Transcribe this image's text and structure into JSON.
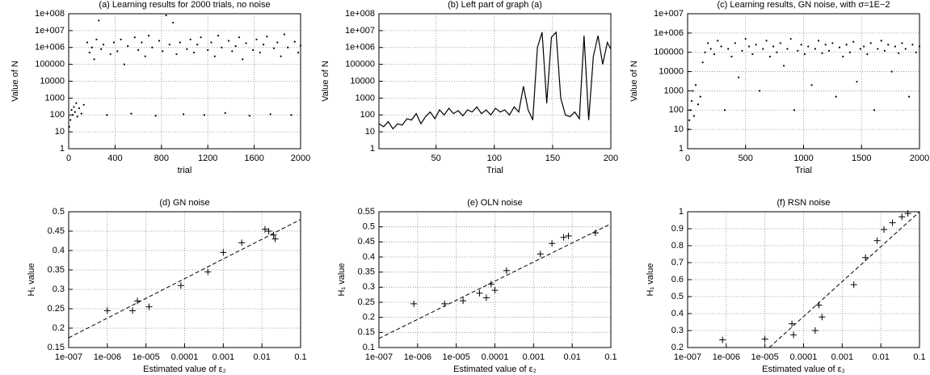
{
  "chart_data": [
    {
      "type": "scatter",
      "title": "(a) Learning results for 2000 trials, no noise",
      "x_label": "trial",
      "y_label": "Value of N",
      "marker": "dot",
      "color": "#000000",
      "grid": true,
      "xlog": false,
      "ylog": true,
      "xlim": [
        0,
        2000
      ],
      "xticks": [
        0,
        400,
        800,
        1200,
        1600,
        2000
      ],
      "ylim": [
        1,
        100000000
      ],
      "yticks": [
        1,
        10,
        100,
        1000,
        10000,
        100000,
        {
          "value": 1000000,
          "label": "1e+006"
        },
        {
          "value": 10000000,
          "label": "1e+007"
        },
        {
          "value": 100000000,
          "label": "1e+008"
        }
      ],
      "x": [
        5,
        15,
        25,
        35,
        45,
        55,
        65,
        75,
        90,
        110,
        130,
        160,
        180,
        200,
        220,
        240,
        260,
        280,
        300,
        330,
        360,
        390,
        420,
        450,
        480,
        510,
        540,
        570,
        600,
        630,
        660,
        690,
        720,
        750,
        780,
        810,
        840,
        870,
        900,
        930,
        960,
        990,
        1020,
        1050,
        1080,
        1110,
        1140,
        1170,
        1200,
        1230,
        1260,
        1290,
        1320,
        1350,
        1380,
        1410,
        1440,
        1470,
        1500,
        1530,
        1560,
        1590,
        1620,
        1650,
        1680,
        1710,
        1740,
        1770,
        1800,
        1830,
        1860,
        1890,
        1920,
        1950,
        1980,
        2000
      ],
      "values": [
        20,
        50,
        200,
        100,
        300,
        150,
        500,
        80,
        250,
        120,
        400,
        2000000,
        500000,
        1000000,
        200000,
        3000000,
        40000000,
        800000,
        1500000,
        100,
        400000,
        2000000,
        600000,
        3000000,
        100000,
        1200000,
        120,
        4000000,
        700000,
        2000000,
        300000,
        5000000,
        1000000,
        90,
        2500000,
        600000,
        80000000,
        1500000,
        30000000,
        400000,
        2000000,
        110,
        800000,
        3000000,
        500000,
        1500000,
        4000000,
        100,
        700000,
        2000000,
        300000,
        5000000,
        1000000,
        130,
        2500000,
        600000,
        1200000,
        4000000,
        200000,
        1800000,
        90,
        700000,
        3000000,
        500000,
        1500000,
        4500000,
        110,
        900000,
        2000000,
        300000,
        6000000,
        1000000,
        100,
        2200000,
        500000,
        1300000
      ]
    },
    {
      "type": "line",
      "title": "(b) Left part of graph (a)",
      "x_label": "Trial",
      "y_label": "Value of N",
      "color": "#000000",
      "grid": true,
      "xlog": false,
      "ylog": true,
      "xlim": [
        1,
        200
      ],
      "xticks": [
        50,
        100,
        150,
        200
      ],
      "ylim": [
        1,
        100000000
      ],
      "yticks": [
        1,
        10,
        100,
        1000,
        10000,
        100000,
        {
          "value": 1000000,
          "label": "1e+006"
        },
        {
          "value": 10000000,
          "label": "1e+007"
        },
        {
          "value": 100000000,
          "label": "1e+008"
        }
      ],
      "x": [
        1,
        5,
        9,
        13,
        17,
        21,
        25,
        29,
        33,
        37,
        41,
        45,
        49,
        53,
        57,
        61,
        65,
        69,
        73,
        77,
        81,
        85,
        89,
        93,
        97,
        101,
        105,
        109,
        113,
        117,
        121,
        125,
        129,
        133,
        137,
        141,
        145,
        149,
        153,
        157,
        161,
        165,
        169,
        173,
        177,
        181,
        185,
        189,
        193,
        197,
        200
      ],
      "values": [
        30,
        20,
        40,
        15,
        30,
        25,
        60,
        50,
        120,
        30,
        80,
        150,
        60,
        200,
        100,
        250,
        120,
        180,
        90,
        200,
        150,
        300,
        120,
        200,
        100,
        250,
        150,
        200,
        100,
        300,
        150,
        5000,
        200,
        50,
        1000000,
        8000000,
        500,
        4000000,
        8000000,
        1000,
        100,
        80,
        150,
        60,
        5000000,
        50,
        300000,
        5000000,
        100000,
        2000000,
        800000
      ]
    },
    {
      "type": "scatter",
      "title": "(c) Learning results, GN noise, with σ=1E−2",
      "x_label": "Trial",
      "y_label": "Value of N",
      "marker": "dot",
      "color": "#000000",
      "grid": true,
      "xlog": false,
      "ylog": true,
      "xlim": [
        0,
        2000
      ],
      "xticks": [
        0,
        500,
        1000,
        1500,
        2000
      ],
      "ylim": [
        1,
        10000000
      ],
      "yticks": [
        1,
        10,
        100,
        1000,
        10000,
        100000,
        {
          "value": 1000000,
          "label": "1e+006"
        },
        {
          "value": 10000000,
          "label": "1e+007"
        }
      ],
      "x": [
        5,
        15,
        25,
        35,
        45,
        55,
        70,
        90,
        110,
        130,
        150,
        175,
        200,
        230,
        260,
        290,
        320,
        350,
        380,
        410,
        440,
        470,
        500,
        530,
        560,
        590,
        620,
        650,
        680,
        710,
        740,
        770,
        800,
        830,
        860,
        890,
        920,
        950,
        980,
        1010,
        1040,
        1070,
        1100,
        1130,
        1160,
        1190,
        1220,
        1250,
        1280,
        1310,
        1340,
        1370,
        1400,
        1430,
        1460,
        1490,
        1520,
        1550,
        1580,
        1610,
        1640,
        1670,
        1700,
        1730,
        1760,
        1790,
        1820,
        1850,
        1880,
        1910,
        1940,
        1970,
        2000
      ],
      "values": [
        10,
        30,
        100,
        300,
        1000,
        50,
        2000,
        200,
        500,
        30000,
        100000,
        300000,
        150000,
        80000,
        400000,
        200000,
        100,
        150000,
        60000,
        300000,
        5000,
        120000,
        500000,
        200000,
        80000,
        250000,
        1000,
        150000,
        400000,
        60000,
        200000,
        100000,
        300000,
        20000,
        150000,
        500000,
        100,
        120000,
        250000,
        80000,
        200000,
        2000,
        150000,
        400000,
        90000,
        250000,
        120000,
        300000,
        500,
        180000,
        60000,
        250000,
        100000,
        350000,
        3000,
        150000,
        200000,
        80000,
        300000,
        100,
        150000,
        400000,
        120000,
        250000,
        10000,
        200000,
        90000,
        300000,
        150000,
        500,
        250000,
        100000,
        200000
      ]
    },
    {
      "type": "scatter",
      "title": "(d) GN noise",
      "x_label": "Estimated value of ε₂",
      "y_label": "H₁ value",
      "marker": "plus",
      "color": "#000000",
      "grid": true,
      "xlog": true,
      "ylog": false,
      "xlim": [
        1e-07,
        0.1
      ],
      "xticks": [
        {
          "value": 1e-07,
          "label": "1e-007"
        },
        {
          "value": 1e-06,
          "label": "1e-006"
        },
        {
          "value": 1e-05,
          "label": "1e-005"
        },
        0.0001,
        0.001,
        0.01,
        0.1
      ],
      "ylim": [
        0.15,
        0.5
      ],
      "yticks": [
        0.15,
        0.2,
        0.25,
        0.3,
        0.35,
        0.4,
        0.45,
        0.5
      ],
      "x": [
        1e-06,
        4.5e-06,
        6e-06,
        1.2e-05,
        8e-05,
        0.0004,
        0.001,
        0.003,
        0.012,
        0.015,
        0.02,
        0.022
      ],
      "values": [
        0.245,
        0.245,
        0.27,
        0.255,
        0.31,
        0.345,
        0.395,
        0.42,
        0.455,
        0.45,
        0.44,
        0.43
      ],
      "fit": {
        "x": [
          1e-07,
          0.1
        ],
        "values": [
          0.175,
          0.48
        ]
      }
    },
    {
      "type": "scatter",
      "title": "(e) OLN noise",
      "x_label": "Estimated value of ε₂",
      "y_label": "H₁ value",
      "marker": "plus",
      "color": "#000000",
      "grid": true,
      "xlog": true,
      "ylog": false,
      "xlim": [
        1e-07,
        0.1
      ],
      "xticks": [
        {
          "value": 1e-07,
          "label": "1e-007"
        },
        {
          "value": 1e-06,
          "label": "1e-006"
        },
        {
          "value": 1e-05,
          "label": "1e-005"
        },
        0.0001,
        0.001,
        0.01,
        0.1
      ],
      "ylim": [
        0.1,
        0.55
      ],
      "yticks": [
        0.1,
        0.15,
        0.2,
        0.25,
        0.3,
        0.35,
        0.4,
        0.45,
        0.5,
        0.55
      ],
      "x": [
        8e-07,
        5e-06,
        1.5e-05,
        4e-05,
        6e-05,
        8e-05,
        0.0001,
        0.0002,
        0.0015,
        0.003,
        0.006,
        0.008,
        0.04
      ],
      "values": [
        0.245,
        0.245,
        0.255,
        0.28,
        0.265,
        0.31,
        0.29,
        0.355,
        0.41,
        0.445,
        0.465,
        0.47,
        0.48
      ],
      "fit": {
        "x": [
          1e-07,
          0.1
        ],
        "values": [
          0.13,
          0.51
        ]
      }
    },
    {
      "type": "scatter",
      "title": "(f) RSN noise",
      "x_label": "Estimated value of ε₂",
      "y_label": "H₁ value",
      "marker": "plus",
      "color": "#000000",
      "grid": true,
      "xlog": true,
      "ylog": false,
      "xlim": [
        1e-07,
        0.1
      ],
      "xticks": [
        {
          "value": 1e-07,
          "label": "1e-007"
        },
        {
          "value": 1e-06,
          "label": "1e-006"
        },
        {
          "value": 1e-05,
          "label": "1e-005"
        },
        0.0001,
        0.001,
        0.01,
        0.1
      ],
      "ylim": [
        0.2,
        1
      ],
      "yticks": [
        0.2,
        0.3,
        0.4,
        0.5,
        0.6,
        0.7,
        0.8,
        0.9,
        1
      ],
      "x": [
        8e-07,
        1e-05,
        5e-05,
        5.5e-05,
        0.0002,
        0.00025,
        0.0003,
        0.002,
        0.004,
        0.008,
        0.012,
        0.02,
        0.035,
        0.05
      ],
      "values": [
        0.245,
        0.25,
        0.34,
        0.275,
        0.3,
        0.45,
        0.38,
        0.57,
        0.73,
        0.83,
        0.895,
        0.935,
        0.97,
        0.99
      ],
      "fit": {
        "x": [
          1.3e-05,
          0.1
        ],
        "values": [
          0.2,
          1.0
        ]
      }
    }
  ]
}
